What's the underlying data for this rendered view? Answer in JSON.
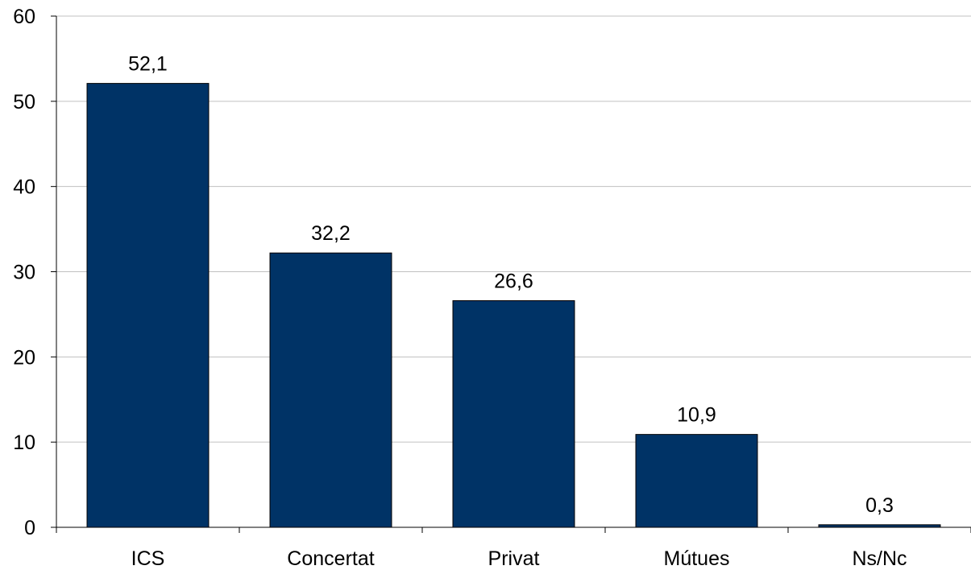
{
  "chart_data": {
    "type": "bar",
    "categories": [
      "ICS",
      "Concertat",
      "Privat",
      "Mútues",
      "Ns/Nc"
    ],
    "values": [
      52.1,
      32.2,
      26.6,
      10.9,
      0.3
    ],
    "data_labels": [
      "52,1",
      "32,2",
      "26,6",
      "10,9",
      "0,3"
    ],
    "ylim": [
      0,
      60
    ],
    "yticks": [
      0,
      10,
      20,
      30,
      40,
      50,
      60
    ],
    "ytick_labels": [
      "0",
      "10",
      "20",
      "30",
      "40",
      "50",
      "60"
    ],
    "title": "",
    "xlabel": "",
    "ylabel": "",
    "grid": true,
    "legend": "none",
    "bar_color": "#003366",
    "grid_color": "#c0c0c0"
  }
}
